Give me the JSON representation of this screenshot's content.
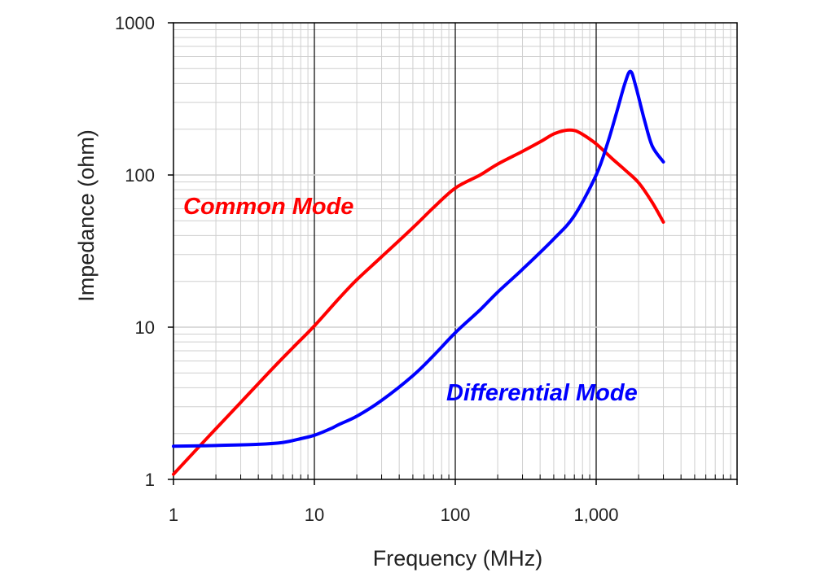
{
  "chart_data": {
    "type": "line",
    "xlabel": "Frequency (MHz)",
    "ylabel": "Impedance (ohm)",
    "xscale": "log",
    "yscale": "log",
    "xlim": [
      1,
      10000
    ],
    "ylim": [
      1,
      1000
    ],
    "grid": true,
    "x_tick_labels": [
      "1",
      "10",
      "100",
      "1,000"
    ],
    "y_tick_labels": [
      "1",
      "10",
      "100",
      "1000"
    ],
    "series": [
      {
        "name": "Common Mode",
        "color": "#ff0000",
        "points": [
          [
            1,
            1.08
          ],
          [
            1.5,
            1.62
          ],
          [
            2,
            2.15
          ],
          [
            3,
            3.2
          ],
          [
            5,
            5.3
          ],
          [
            7,
            7.3
          ],
          [
            10,
            10.2
          ],
          [
            15,
            15.5
          ],
          [
            20,
            20.5
          ],
          [
            30,
            29
          ],
          [
            50,
            45
          ],
          [
            70,
            61
          ],
          [
            100,
            82
          ],
          [
            150,
            100
          ],
          [
            200,
            118
          ],
          [
            300,
            143
          ],
          [
            400,
            165
          ],
          [
            500,
            186
          ],
          [
            600,
            196
          ],
          [
            700,
            196
          ],
          [
            800,
            185
          ],
          [
            1000,
            160
          ],
          [
            1300,
            128
          ],
          [
            1600,
            108
          ],
          [
            2000,
            89
          ],
          [
            2500,
            66
          ],
          [
            3000,
            49
          ]
        ]
      },
      {
        "name": "Differential Mode",
        "color": "#0000ff",
        "points": [
          [
            1,
            1.65
          ],
          [
            2,
            1.67
          ],
          [
            4,
            1.7
          ],
          [
            6,
            1.75
          ],
          [
            8,
            1.85
          ],
          [
            10,
            1.95
          ],
          [
            13,
            2.15
          ],
          [
            15,
            2.3
          ],
          [
            20,
            2.6
          ],
          [
            30,
            3.3
          ],
          [
            50,
            4.8
          ],
          [
            70,
            6.5
          ],
          [
            100,
            9.2
          ],
          [
            150,
            13
          ],
          [
            200,
            17
          ],
          [
            300,
            24
          ],
          [
            500,
            38
          ],
          [
            700,
            54
          ],
          [
            1000,
            100
          ],
          [
            1200,
            160
          ],
          [
            1400,
            260
          ],
          [
            1600,
            400
          ],
          [
            1750,
            480
          ],
          [
            1900,
            390
          ],
          [
            2200,
            230
          ],
          [
            2500,
            155
          ],
          [
            3000,
            122
          ]
        ]
      }
    ]
  }
}
